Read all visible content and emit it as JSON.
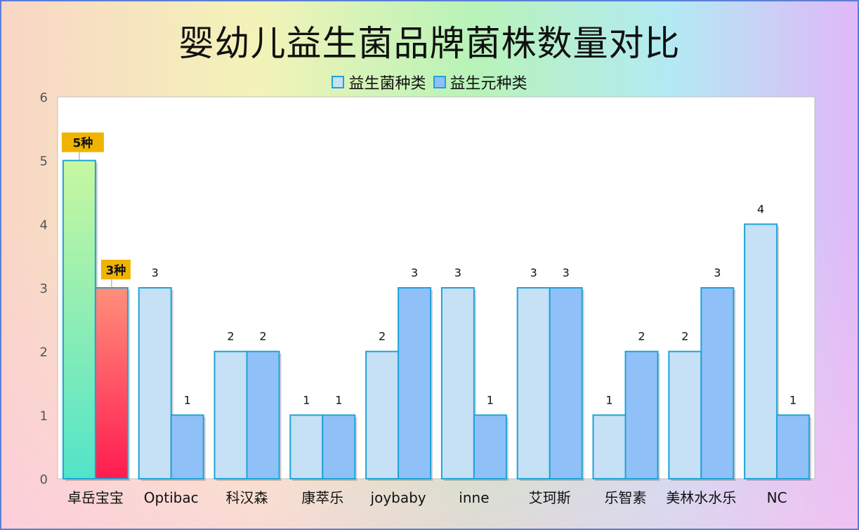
{
  "chart_data": {
    "type": "bar",
    "title": "婴幼儿益生菌品牌菌株数量对比",
    "categories": [
      "卓岳宝宝",
      "Optibac",
      "科汉森",
      "康萃乐",
      "joybaby",
      "inne",
      "艾珂斯",
      "乐智素",
      "美林水水乐",
      "NC"
    ],
    "series": [
      {
        "name": "益生菌种类",
        "values": [
          5,
          3,
          2,
          1,
          2,
          3,
          3,
          1,
          2,
          4
        ],
        "color": "#c6e0f5"
      },
      {
        "name": "益生元种类",
        "values": [
          3,
          1,
          2,
          1,
          3,
          1,
          3,
          2,
          3,
          1
        ],
        "color": "#90c0f8"
      }
    ],
    "highlight": {
      "category_index": 0,
      "labels": [
        "5种",
        "3种"
      ],
      "label_bg": "#f0b400",
      "gradients": [
        [
          "#c8f7a0",
          "#52e4c9"
        ],
        [
          "#ff8f7a",
          "#ff1b4f"
        ]
      ]
    },
    "ylim": [
      0,
      6
    ],
    "yticks": [
      0,
      1,
      2,
      3,
      4,
      5,
      6
    ],
    "grid": true,
    "legend_position": "top",
    "bar_border_color": "#1fa3d6"
  }
}
